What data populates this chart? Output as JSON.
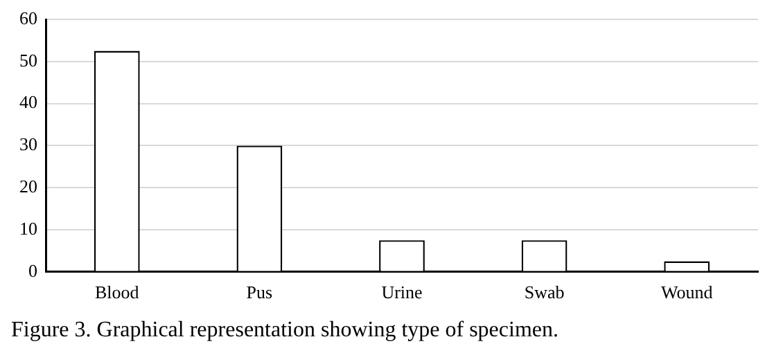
{
  "chart_data": {
    "type": "bar",
    "categories": [
      "Blood",
      "Pus",
      "Urine",
      "Swab",
      "Wound"
    ],
    "values": [
      52.5,
      30,
      7.5,
      7.5,
      2.5
    ],
    "color": "#ffffff",
    "ylim": [
      0,
      60
    ],
    "yticks": [
      0,
      10,
      20,
      30,
      40,
      50,
      60
    ],
    "grid": "y",
    "annotations": [
      "Figure 3. Graphical representation showing type of specimen."
    ]
  }
}
